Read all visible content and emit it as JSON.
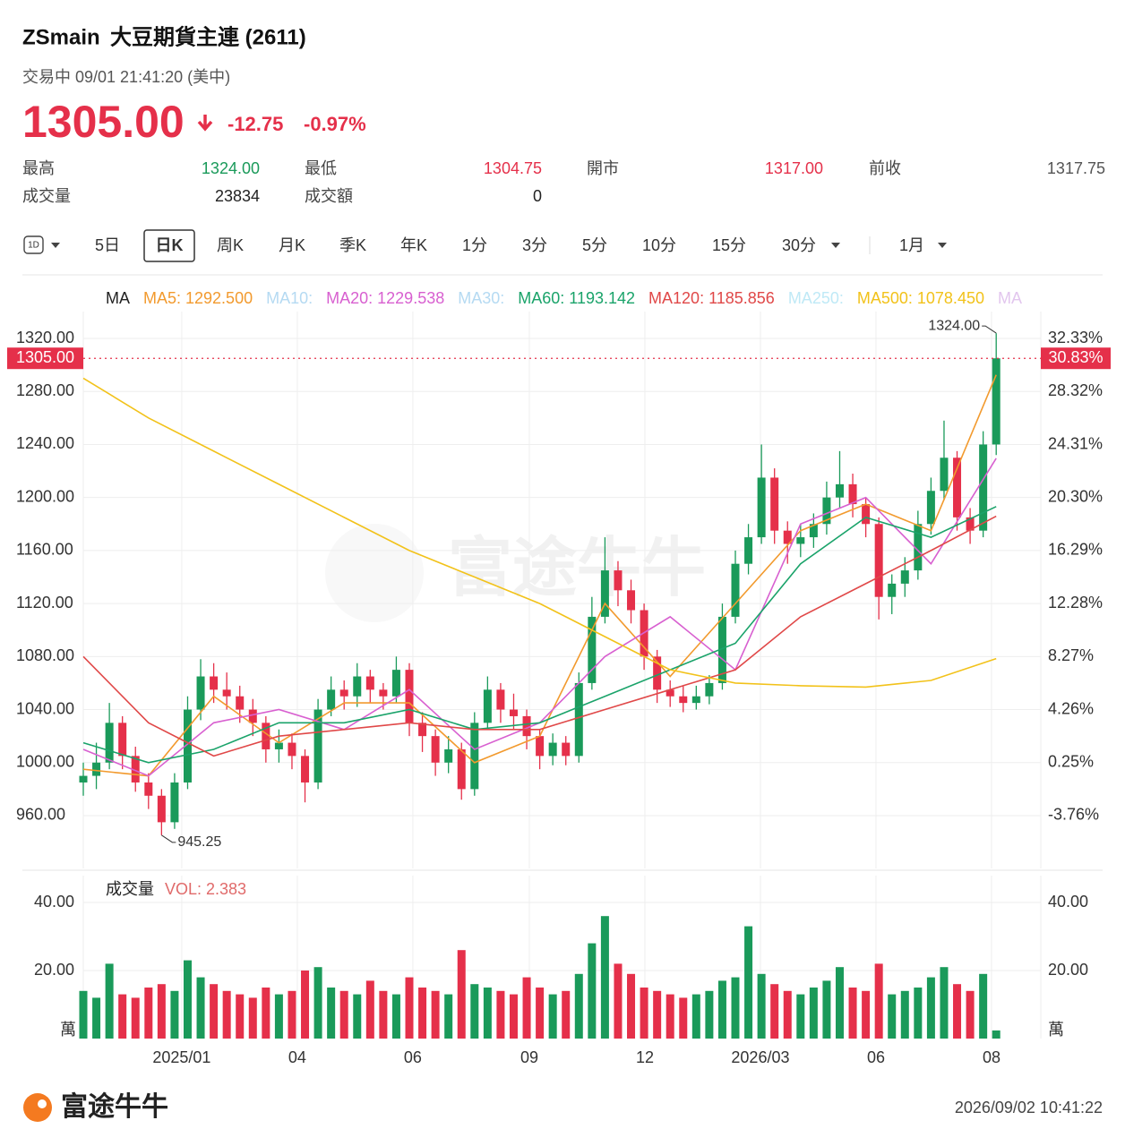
{
  "header": {
    "symbol": "ZSmain",
    "name": "大豆期貨主連 (2611)",
    "status": "交易中 09/01 21:41:20 (美中)",
    "price": "1305.00",
    "change": "-12.75",
    "change_pct": "-0.97%"
  },
  "stats": [
    {
      "label": "最高",
      "value": "1324.00",
      "color": "#1a9a5a"
    },
    {
      "label": "最低",
      "value": "1304.75",
      "color": "#e5304a"
    },
    {
      "label": "開市",
      "value": "1317.00",
      "color": "#e5304a"
    },
    {
      "label": "前收",
      "value": "1317.75",
      "color": "#555555"
    },
    {
      "label": "成交量",
      "value": "23834",
      "color": "#222222"
    },
    {
      "label": "成交額",
      "value": "0",
      "color": "#222222"
    }
  ],
  "tabs": {
    "icon": "1D",
    "items": [
      "5日",
      "日K",
      "周K",
      "月K",
      "季K",
      "年K",
      "1分",
      "3分",
      "5分",
      "10分",
      "15分",
      "30分",
      "1月"
    ],
    "active": "日K"
  },
  "footer": {
    "brand": "富途牛牛",
    "timestamp": "2026/09/02 10:41:22"
  },
  "chart_data": {
    "type": "candlestick",
    "watermark": "富途牛牛",
    "legend": [
      {
        "text": "MA",
        "color": "#222222"
      },
      {
        "text": "MA5: 1292.500",
        "color": "#f29a2e"
      },
      {
        "text": "MA10:",
        "color": "#b5daf2"
      },
      {
        "text": "MA20: 1229.538",
        "color": "#d860d0"
      },
      {
        "text": "MA30:",
        "color": "#b5daf2"
      },
      {
        "text": "MA60: 1193.142",
        "color": "#1aa36a"
      },
      {
        "text": "MA120: 1185.856",
        "color": "#e04848"
      },
      {
        "text": "MA250:",
        "color": "#bfe9f6"
      },
      {
        "text": "MA500: 1078.450",
        "color": "#f2c21a"
      },
      {
        "text": "MA",
        "color": "#e2c6ee"
      }
    ],
    "up_color": "#1a9a5a",
    "down_color": "#e5304a",
    "xlim": [
      0,
      73.42
    ],
    "xticks": [
      {
        "value": 7.55,
        "label": "2025/01"
      },
      {
        "value": 16.41,
        "label": "04"
      },
      {
        "value": 25.27,
        "label": "06"
      },
      {
        "value": 34.2,
        "label": "09"
      },
      {
        "value": 43.06,
        "label": "12"
      },
      {
        "value": 51.92,
        "label": "2026/03"
      },
      {
        "value": 60.78,
        "label": "06"
      },
      {
        "value": 69.64,
        "label": "08"
      }
    ],
    "ylim": [
      920,
      1340
    ],
    "yticks": [
      {
        "value": 1320,
        "label": "1320.00"
      },
      {
        "value": 1280,
        "label": "1280.00"
      },
      {
        "value": 1240,
        "label": "1240.00"
      },
      {
        "value": 1200,
        "label": "1200.00"
      },
      {
        "value": 1160,
        "label": "1160.00"
      },
      {
        "value": 1120,
        "label": "1120.00"
      },
      {
        "value": 1080,
        "label": "1080.00"
      },
      {
        "value": 1040,
        "label": "1040.00"
      },
      {
        "value": 1000,
        "label": "1000.00"
      },
      {
        "value": 960,
        "label": "960.00"
      }
    ],
    "y2lim": [
      -7.77,
      34.34
    ],
    "y2ticks": [
      {
        "value": 32.33,
        "label": "32.33%"
      },
      {
        "value": 28.32,
        "label": "28.32%"
      },
      {
        "value": 24.31,
        "label": "24.31%"
      },
      {
        "value": 20.3,
        "label": "20.30%"
      },
      {
        "value": 16.29,
        "label": "16.29%"
      },
      {
        "value": 12.28,
        "label": "12.28%"
      },
      {
        "value": 8.27,
        "label": "8.27%"
      },
      {
        "value": 4.26,
        "label": "4.26%"
      },
      {
        "value": 0.25,
        "label": "0.25%"
      },
      {
        "value": -3.76,
        "label": "-3.76%"
      }
    ],
    "grid": true,
    "price_line": {
      "value": 1305,
      "label": "1305.00",
      "pct_label": "30.83%",
      "color": "#e5304a"
    },
    "high_label": "1324.00",
    "low_label": "945.25",
    "open": [
      985,
      990,
      1000,
      1030,
      1005,
      985,
      975,
      955,
      985,
      1040,
      1065,
      1055,
      1050,
      1040,
      1030,
      1010,
      1015,
      1005,
      985,
      1040,
      1055,
      1050,
      1065,
      1055,
      1050,
      1070,
      1030,
      1020,
      1000,
      1010,
      980,
      1030,
      1055,
      1040,
      1035,
      1020,
      1005,
      1015,
      1005,
      1060,
      1110,
      1145,
      1130,
      1115,
      1080,
      1055,
      1050,
      1045,
      1050,
      1060,
      1110,
      1150,
      1170,
      1215,
      1175,
      1165,
      1170,
      1180,
      1200,
      1210,
      1195,
      1180,
      1125,
      1135,
      1145,
      1180,
      1205,
      1230,
      1185,
      1175,
      1240
    ],
    "high": [
      1000,
      1015,
      1045,
      1035,
      1012,
      992,
      980,
      992,
      1050,
      1078,
      1075,
      1068,
      1058,
      1048,
      1035,
      1025,
      1022,
      1010,
      1048,
      1065,
      1062,
      1075,
      1070,
      1060,
      1080,
      1075,
      1038,
      1025,
      1020,
      1015,
      1038,
      1065,
      1060,
      1052,
      1040,
      1025,
      1022,
      1020,
      1068,
      1125,
      1170,
      1152,
      1138,
      1120,
      1085,
      1062,
      1058,
      1058,
      1066,
      1120,
      1160,
      1180,
      1240,
      1222,
      1182,
      1180,
      1188,
      1212,
      1235,
      1218,
      1200,
      1185,
      1142,
      1155,
      1190,
      1215,
      1258,
      1235,
      1192,
      1250,
      1324
    ],
    "low": [
      975,
      980,
      995,
      995,
      978,
      965,
      945.25,
      950,
      980,
      1032,
      1045,
      1040,
      1030,
      1020,
      1000,
      1000,
      995,
      970,
      980,
      1035,
      1040,
      1042,
      1045,
      1040,
      1045,
      1020,
      1008,
      990,
      992,
      972,
      975,
      1025,
      1030,
      1025,
      1010,
      995,
      998,
      998,
      1000,
      1055,
      1105,
      1118,
      1105,
      1070,
      1045,
      1042,
      1038,
      1040,
      1044,
      1055,
      1105,
      1142,
      1165,
      1165,
      1150,
      1155,
      1162,
      1172,
      1192,
      1185,
      1170,
      1108,
      1112,
      1125,
      1138,
      1172,
      1198,
      1175,
      1165,
      1170,
      1232
    ],
    "close": [
      990,
      1000,
      1030,
      1005,
      985,
      975,
      955,
      985,
      1040,
      1065,
      1055,
      1050,
      1040,
      1030,
      1010,
      1015,
      1005,
      985,
      1040,
      1055,
      1050,
      1065,
      1055,
      1050,
      1070,
      1030,
      1020,
      1000,
      1010,
      980,
      1030,
      1055,
      1040,
      1035,
      1020,
      1005,
      1015,
      1005,
      1060,
      1110,
      1145,
      1130,
      1115,
      1080,
      1055,
      1050,
      1045,
      1050,
      1060,
      1110,
      1150,
      1170,
      1215,
      1175,
      1165,
      1170,
      1180,
      1200,
      1210,
      1195,
      1180,
      1125,
      1135,
      1145,
      1180,
      1205,
      1230,
      1185,
      1175,
      1240,
      1305
    ],
    "ma_x": [
      0,
      5,
      10,
      15,
      20,
      25,
      30,
      35,
      40,
      45,
      50,
      55,
      60,
      65,
      70
    ],
    "ma_series": [
      {
        "name": "MA5",
        "color": "#f29a2e",
        "values": [
          995,
          990,
          1050,
          1015,
          1045,
          1045,
          1000,
          1020,
          1120,
          1065,
          1120,
          1175,
          1195,
          1175,
          1292.5
        ]
      },
      {
        "name": "MA20",
        "color": "#d860d0",
        "values": [
          1010,
          990,
          1030,
          1040,
          1025,
          1055,
          1010,
          1030,
          1080,
          1110,
          1070,
          1180,
          1200,
          1150,
          1229.538
        ]
      },
      {
        "name": "MA60",
        "color": "#1aa36a",
        "values": [
          1015,
          1000,
          1010,
          1030,
          1030,
          1040,
          1025,
          1030,
          1050,
          1070,
          1090,
          1150,
          1185,
          1170,
          1193.142
        ]
      },
      {
        "name": "MA120",
        "color": "#e04848",
        "values": [
          1080,
          1030,
          1005,
          1020,
          1025,
          1030,
          1025,
          1025,
          1040,
          1055,
          1070,
          1110,
          1135,
          1160,
          1185.856
        ]
      },
      {
        "name": "MA500",
        "color": "#f2c21a",
        "values": [
          1290,
          1260,
          1235,
          1210,
          1185,
          1160,
          1140,
          1120,
          1095,
          1070,
          1060,
          1058,
          1057,
          1062,
          1078.45
        ]
      }
    ],
    "volume": {
      "title": "成交量",
      "legend": "VOL: 2.383",
      "legend_color": "#e06a6a",
      "unit": "萬",
      "ylim": [
        0,
        48
      ],
      "yticks": [
        {
          "value": 40,
          "label": "40.00"
        },
        {
          "value": 20,
          "label": "20.00"
        }
      ],
      "values": [
        14,
        12,
        22,
        13,
        12,
        15,
        16,
        14,
        23,
        18,
        16,
        14,
        13,
        12,
        15,
        13,
        14,
        20,
        21,
        15,
        14,
        13,
        17,
        14,
        13,
        18,
        15,
        14,
        13,
        26,
        16,
        15,
        14,
        13,
        18,
        15,
        13,
        14,
        19,
        28,
        36,
        22,
        19,
        15,
        14,
        13,
        12,
        13,
        14,
        17,
        18,
        33,
        19,
        16,
        14,
        13,
        15,
        17,
        21,
        15,
        14,
        22,
        13,
        14,
        15,
        18,
        21,
        16,
        14,
        19,
        2.383
      ]
    }
  }
}
